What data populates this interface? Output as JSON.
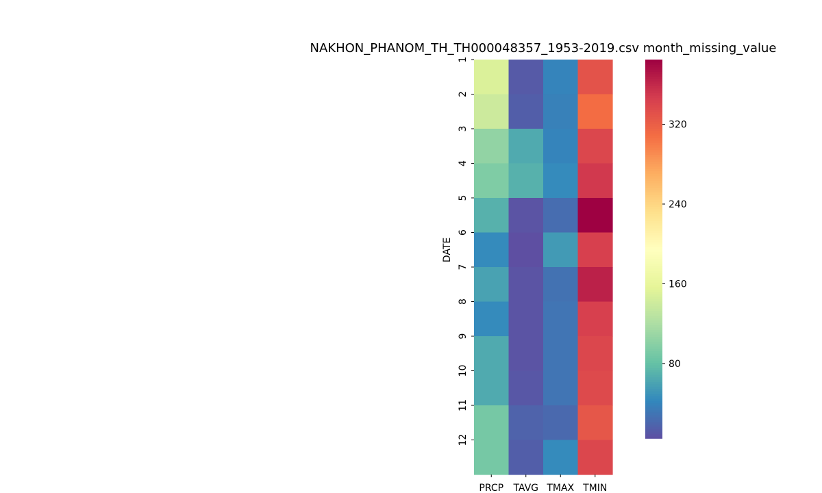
{
  "chart_data": {
    "type": "heatmap",
    "title": "NAKHON_PHANOM_TH_TH000048357_1953-2019.csv month_missing_value",
    "xlabel": "",
    "ylabel": "DATE",
    "x_categories": [
      "PRCP",
      "TAVG",
      "TMAX",
      "TMIN"
    ],
    "y_categories": [
      "1",
      "2",
      "3",
      "4",
      "5",
      "6",
      "7",
      "8",
      "9",
      "10",
      "11",
      "12"
    ],
    "values": [
      [
        150,
        12,
        40,
        330
      ],
      [
        140,
        15,
        38,
        310
      ],
      [
        105,
        65,
        40,
        340
      ],
      [
        95,
        70,
        45,
        350
      ],
      [
        70,
        8,
        25,
        385
      ],
      [
        45,
        5,
        55,
        345
      ],
      [
        60,
        8,
        28,
        365
      ],
      [
        45,
        8,
        30,
        345
      ],
      [
        65,
        8,
        30,
        340
      ],
      [
        65,
        10,
        30,
        337
      ],
      [
        90,
        18,
        22,
        327
      ],
      [
        90,
        15,
        45,
        340
      ]
    ],
    "colormap": "Spectral_r",
    "vmin": 5,
    "vmax": 385,
    "colorbar_ticks": [
      "80",
      "160",
      "240",
      "320"
    ]
  }
}
